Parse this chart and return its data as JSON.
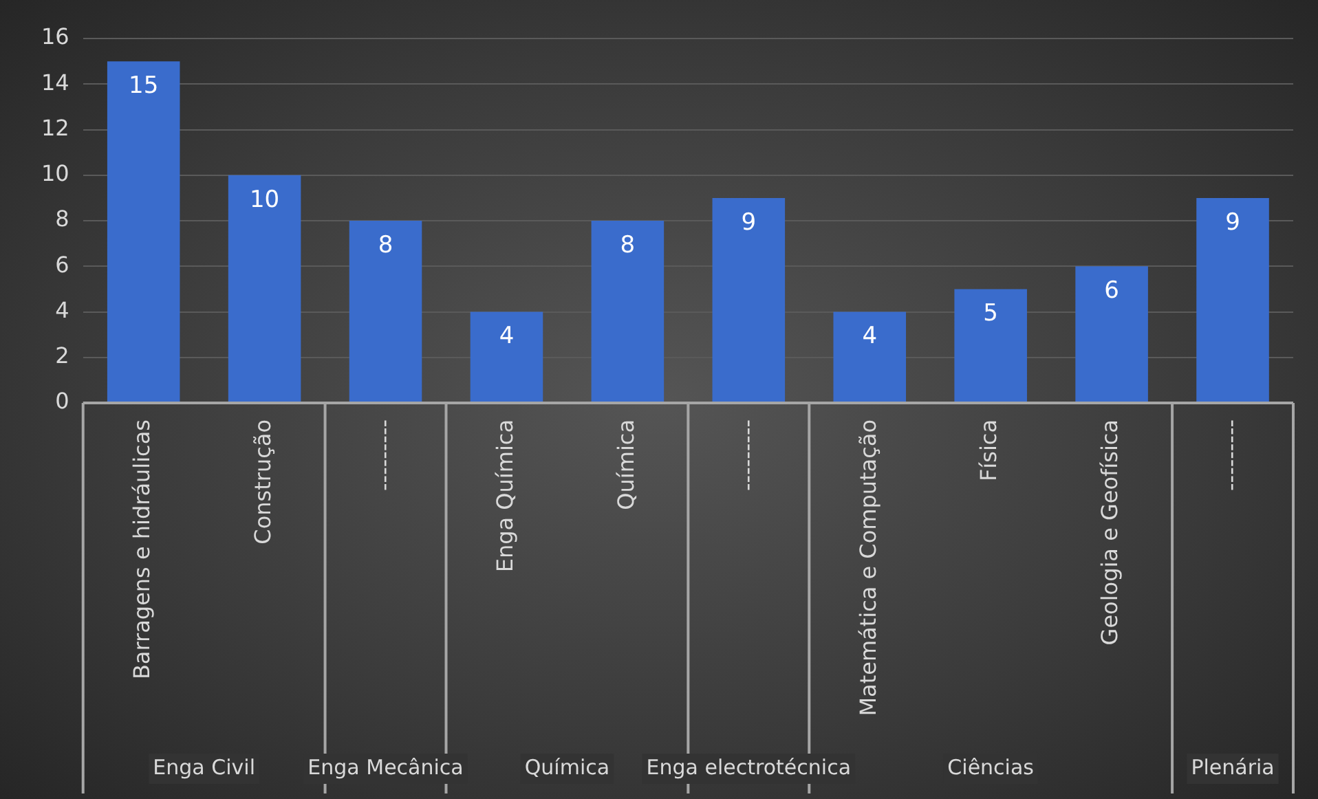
{
  "chart_data": {
    "type": "bar",
    "categories": [
      "Barragens e hidráulicas",
      "Construção",
      "---------",
      "Enga Química",
      "Química",
      "---------",
      "Matemática e Computação",
      "Física",
      "Geologia e Geofísica",
      "---------"
    ],
    "values": [
      15,
      10,
      8,
      4,
      8,
      9,
      4,
      5,
      6,
      9
    ],
    "color": "#3a6ccc",
    "ylim": [
      0,
      16
    ],
    "yticks": [
      0,
      2,
      4,
      6,
      8,
      10,
      12,
      14,
      16
    ],
    "grid": "y",
    "legend": false,
    "data_labels": true,
    "annotations": [
      "Enga Civil",
      "Enga Mecânica",
      "Química",
      "Enga electrotécnica",
      "Ciências",
      "Plenária"
    ]
  }
}
